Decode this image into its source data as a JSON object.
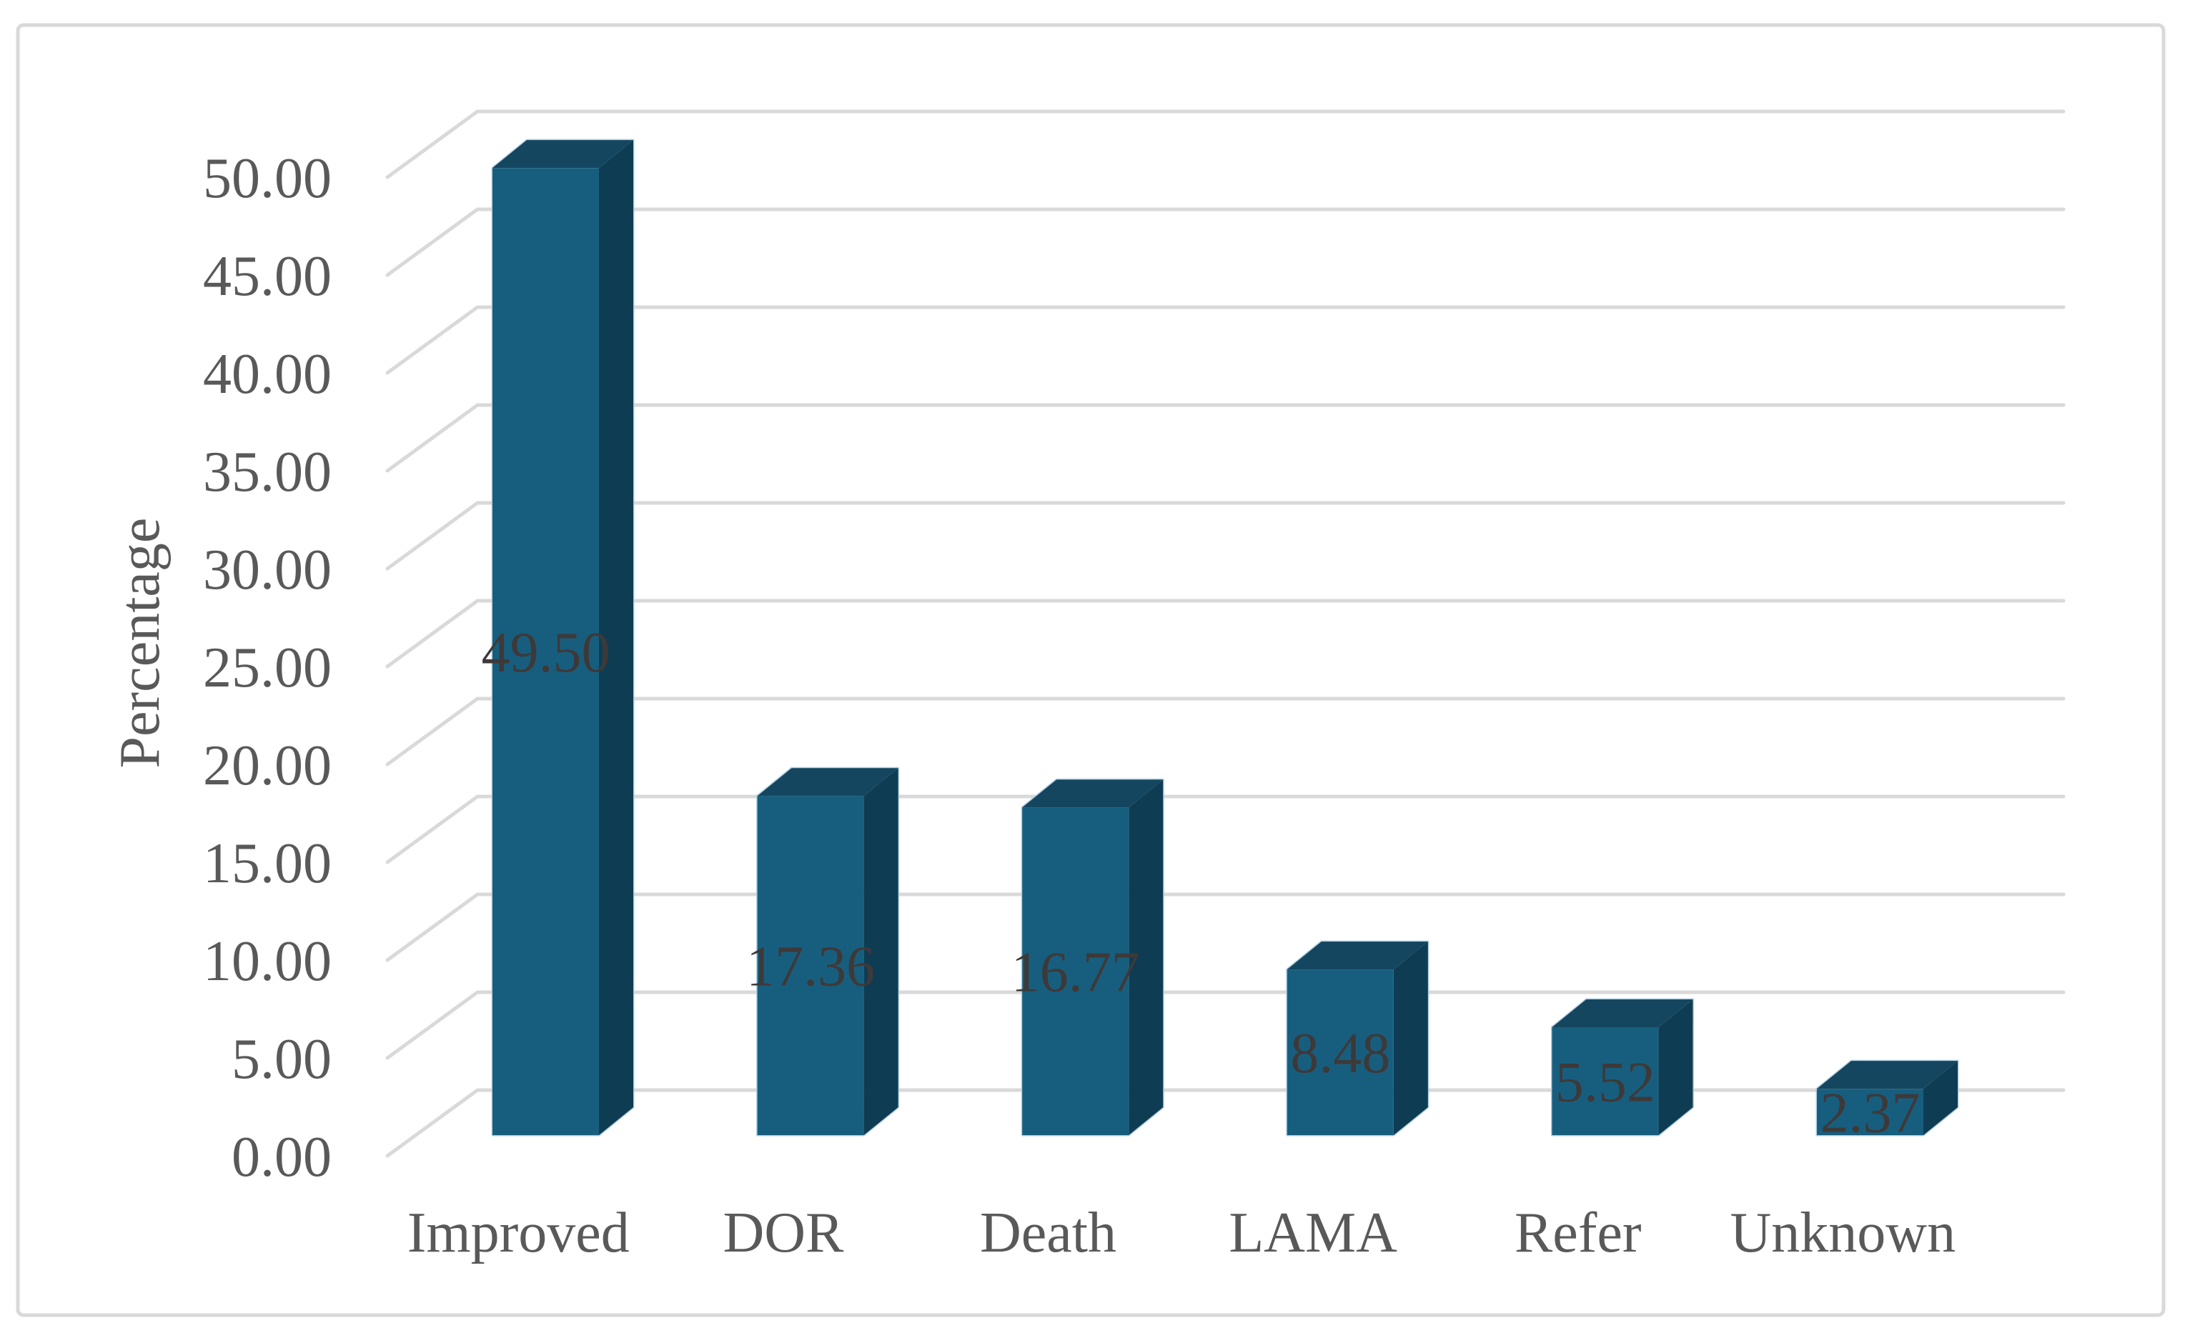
{
  "figure": {
    "background": "#FFFFFF",
    "border_color": "#D9D9D9"
  },
  "chart_data": {
    "type": "bar",
    "projection": "3d-oblique-column",
    "title": "",
    "categories": [
      "Improved",
      "DOR",
      "Death",
      "LAMA",
      "Refer",
      "Unknown"
    ],
    "series": [
      {
        "name": "Percentage",
        "values": [
          49.5,
          17.36,
          16.77,
          8.48,
          5.52,
          2.37
        ]
      }
    ],
    "values": [
      49.5,
      17.36,
      16.77,
      8.48,
      5.52,
      2.37
    ],
    "data_labels": [
      "49.50",
      "17.36",
      "16.77",
      "8.48",
      "5.52",
      "2.37"
    ],
    "data_label_position": "center-of-bar",
    "xlabel": "",
    "ylabel": "Percentage",
    "ylim": [
      0,
      50
    ],
    "ytick_step": 5,
    "ytick_labels": [
      "0.00",
      "5.00",
      "10.00",
      "15.00",
      "20.00",
      "25.00",
      "30.00",
      "35.00",
      "40.00",
      "45.00",
      "50.00"
    ],
    "grid": true,
    "legend": false,
    "colors": {
      "bar_front": "#175E7E",
      "bar_top": "#15465F",
      "bar_side": "#0E3C53",
      "bar_edge_highlight": "#A9C9DD",
      "gridline": "#D9D9D9",
      "axis_text": "#595959",
      "data_label_text": "#3E3939",
      "plot_background": "#FFFFFF"
    }
  }
}
